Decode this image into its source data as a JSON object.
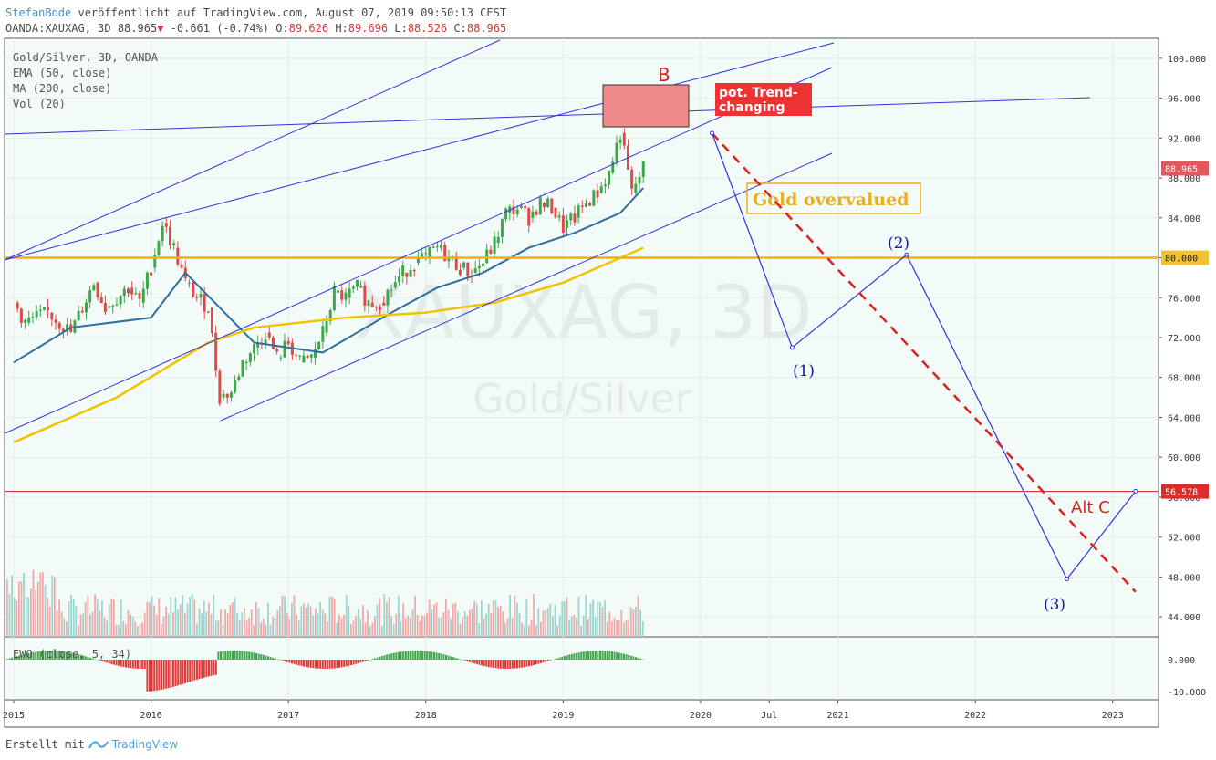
{
  "header": {
    "author": "StefanBode",
    "published": "veröffentlicht auf TradingView.com, August 07, 2019 09:50:13 CEST",
    "symbol": "OANDA:XAUXAG, 3D",
    "last": "88.965",
    "arrow": "▼",
    "change": "-0.661 (-0.74%)",
    "ohlc": {
      "o_label": "O:",
      "o": "89.626",
      "h_label": "H:",
      "h": "89.696",
      "l_label": "L:",
      "l": "88.526",
      "c_label": "C:",
      "c": "88.965"
    }
  },
  "legend": {
    "title": "Gold/Silver, 3D, OANDA",
    "ema": "EMA (50, close)",
    "ma": "MA (200, close)",
    "vol": "Vol (20)"
  },
  "watermark": {
    "ticker": "XAUXAG, 3D",
    "name": "Gold/Silver"
  },
  "footer": {
    "made_with": "Erstellt mit",
    "brand": "TradingView"
  },
  "chart_data": {
    "type": "candlestick",
    "ylim": [
      42,
      102
    ],
    "y_ticks": [
      "100.000",
      "96.000",
      "92.000",
      "88.000",
      "84.000",
      "80.000",
      "76.000",
      "72.000",
      "68.000",
      "64.000",
      "60.000",
      "56.000",
      "52.000",
      "48.000",
      "44.000"
    ],
    "x_ticks": [
      "2015",
      "2016",
      "2017",
      "2018",
      "2019",
      "2020",
      "Jul",
      "2021",
      "2022",
      "2023"
    ],
    "price_labels": {
      "last": "88.965",
      "level": "80.000",
      "target": "56.578"
    },
    "osc_ticks": [
      "0.000",
      "-10.000"
    ],
    "oscillator_label": "EWO (close, 5, 34)",
    "price_path": [
      [
        "2015-01",
        75.5
      ],
      [
        "2015-02",
        73.5
      ],
      [
        "2015-04",
        74.5
      ],
      [
        "2015-06",
        72.5
      ],
      [
        "2015-08",
        77.5
      ],
      [
        "2015-09",
        75.0
      ],
      [
        "2015-11",
        77.0
      ],
      [
        "2015-12",
        75.5
      ],
      [
        "2016-01",
        79.0
      ],
      [
        "2016-02",
        83.5
      ],
      [
        "2016-03",
        81.0
      ],
      [
        "2016-04",
        77.5
      ],
      [
        "2016-05",
        76.0
      ],
      [
        "2016-06",
        75.0
      ],
      [
        "2016-07",
        66.0
      ],
      [
        "2016-08",
        66.5
      ],
      [
        "2016-09",
        69.5
      ],
      [
        "2016-10",
        71.0
      ],
      [
        "2016-11",
        72.5
      ],
      [
        "2016-12",
        70.0
      ],
      [
        "2017-01",
        71.5
      ],
      [
        "2017-02",
        69.5
      ],
      [
        "2017-03",
        70.0
      ],
      [
        "2017-04",
        72.5
      ],
      [
        "2017-05",
        76.5
      ],
      [
        "2017-06",
        76.0
      ],
      [
        "2017-07",
        77.0
      ],
      [
        "2017-08",
        75.5
      ],
      [
        "2017-09",
        75.5
      ],
      [
        "2017-10",
        77.0
      ],
      [
        "2017-11",
        78.5
      ],
      [
        "2017-12",
        79.5
      ],
      [
        "2018-01",
        80.0
      ],
      [
        "2018-02",
        81.0
      ],
      [
        "2018-03",
        80.0
      ],
      [
        "2018-04",
        79.0
      ],
      [
        "2018-05",
        78.5
      ],
      [
        "2018-06",
        79.5
      ],
      [
        "2018-07",
        81.5
      ],
      [
        "2018-08",
        84.5
      ],
      [
        "2018-09",
        85.0
      ],
      [
        "2018-10",
        84.0
      ],
      [
        "2018-11",
        85.5
      ],
      [
        "2018-12",
        85.0
      ],
      [
        "2019-01",
        83.0
      ],
      [
        "2019-02",
        84.0
      ],
      [
        "2019-03",
        85.5
      ],
      [
        "2019-04",
        86.5
      ],
      [
        "2019-05",
        88.5
      ],
      [
        "2019-06",
        92.5
      ],
      [
        "2019-07",
        86.5
      ],
      [
        "2019-08",
        89.0
      ]
    ],
    "ema50": [
      [
        "2015-01",
        69.5
      ],
      [
        "2015-06",
        73.0
      ],
      [
        "2016-01",
        74.0
      ],
      [
        "2016-04",
        78.5
      ],
      [
        "2016-07",
        75.0
      ],
      [
        "2016-10",
        71.5
      ],
      [
        "2017-04",
        70.5
      ],
      [
        "2017-10",
        74.5
      ],
      [
        "2018-02",
        77.0
      ],
      [
        "2018-06",
        78.5
      ],
      [
        "2018-10",
        81.0
      ],
      [
        "2019-02",
        82.5
      ],
      [
        "2019-06",
        84.5
      ],
      [
        "2019-08",
        87.0
      ]
    ],
    "ma200": [
      [
        "2015-01",
        61.5
      ],
      [
        "2015-10",
        66.0
      ],
      [
        "2016-06",
        71.5
      ],
      [
        "2016-10",
        73.0
      ],
      [
        "2017-06",
        74.0
      ],
      [
        "2018-01",
        74.5
      ],
      [
        "2018-07",
        75.5
      ],
      [
        "2019-01",
        77.5
      ],
      [
        "2019-08",
        81.0
      ]
    ],
    "labels": {
      "B": "B",
      "trend_change": [
        "pot. Trend-",
        "changing"
      ],
      "overvalued": "Gold overvalued",
      "wave1": "(1)",
      "wave2": "(2)",
      "wave3": "(3)",
      "alt_c": "Alt C"
    },
    "projection": [
      [
        "2020-02",
        92.5
      ],
      [
        "2020-09",
        71.0
      ],
      [
        "2021-07",
        80.3
      ],
      [
        "2022-09",
        47.8
      ],
      [
        "2023-03",
        56.6
      ]
    ],
    "alt_c_path": [
      [
        "2020-02",
        92.5
      ],
      [
        "2023-03",
        46.5
      ]
    ],
    "horizontal_lines": {
      "gold_level": 80.0,
      "red_level": 56.578
    },
    "colors": {
      "up": "#3fa64a",
      "down": "#de4a4a",
      "ema": "#2e6f9e",
      "ma": "#f2c200",
      "channel": "#3333dd",
      "gold": "#f0b400",
      "redline": "#cc2222",
      "box": "#f08a8a",
      "label_bg": "#ee3333",
      "overvalued": "#e8b020",
      "wave": "#1a1a99"
    }
  }
}
